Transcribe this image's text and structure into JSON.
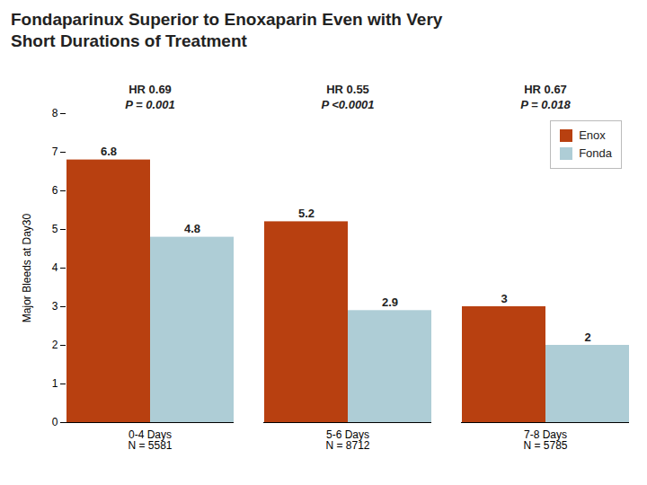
{
  "chart_data": {
    "type": "bar",
    "title": "Fondaparinux Superior to Enoxaparin Even with Very\nShort Durations of Treatment",
    "ylabel": "Major Bleeds at Day30",
    "categories": [
      "0-4 Days\nN = 5581",
      "5-6 Days\nN = 8712",
      "7-8 Days\nN = 5785"
    ],
    "series": [
      {
        "name": "Enox",
        "color": "#b84010",
        "values": [
          6.8,
          5.2,
          3.0
        ]
      },
      {
        "name": "Fonda",
        "color": "#aecdd6",
        "values": [
          4.8,
          2.9,
          2.0
        ]
      }
    ],
    "ylim": [
      0,
      8
    ],
    "yticks": [
      0,
      1,
      2,
      3,
      4,
      5,
      6,
      7,
      8
    ],
    "data_labels": true,
    "legend": "upper right",
    "grid": false,
    "annotations": [
      {
        "category": "0-4 Days\nN = 5581",
        "lines": [
          "HR 0.69",
          "P = 0.001"
        ]
      },
      {
        "category": "5-6 Days\nN = 8712",
        "lines": [
          "HR 0.55",
          "P <0.0001"
        ]
      },
      {
        "category": "7-8 Days\nN = 5785",
        "lines": [
          "HR 0.67",
          "P = 0.018"
        ]
      }
    ]
  }
}
